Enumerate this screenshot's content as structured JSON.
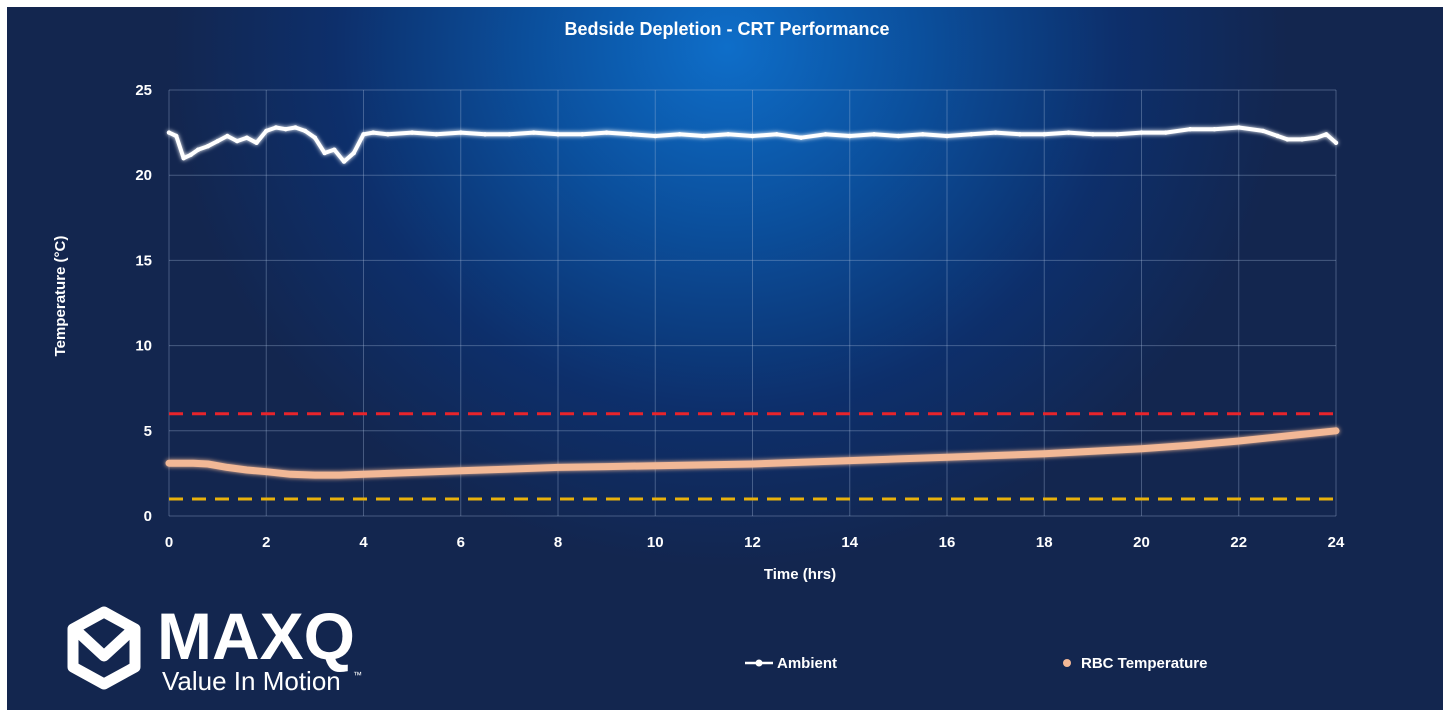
{
  "chart_data": {
    "type": "line",
    "title": "Bedside Depletion - CRT Performance",
    "xlabel": "Time (hrs)",
    "ylabel": "Temperature (°C)",
    "xlim": [
      0,
      24
    ],
    "ylim": [
      0,
      25
    ],
    "x_ticks": [
      0,
      2,
      4,
      6,
      8,
      10,
      12,
      14,
      16,
      18,
      20,
      22,
      24
    ],
    "y_ticks": [
      0,
      5,
      10,
      15,
      20,
      25
    ],
    "x_tick_labels": [
      "0",
      "2",
      "4",
      "6",
      "8",
      "10",
      "12",
      "14",
      "16",
      "18",
      "20",
      "22",
      "24"
    ],
    "y_tick_labels": [
      "0",
      "5",
      "10",
      "15",
      "20",
      "25"
    ],
    "grid": true,
    "legend_position": "bottom",
    "reference_lines": [
      {
        "y": 6,
        "color": "#e8242b",
        "style": "dashed"
      },
      {
        "y": 1,
        "color": "#e8b10c",
        "style": "dashed"
      }
    ],
    "series": [
      {
        "name": "Ambient",
        "color": "#ffffff",
        "x": [
          0,
          0.15,
          0.3,
          0.45,
          0.6,
          0.8,
          1.0,
          1.2,
          1.4,
          1.6,
          1.8,
          2.0,
          2.2,
          2.4,
          2.6,
          2.8,
          3.0,
          3.2,
          3.4,
          3.6,
          3.8,
          4.0,
          4.2,
          4.5,
          5.0,
          5.5,
          6.0,
          6.5,
          7.0,
          7.5,
          8.0,
          8.5,
          9.0,
          9.5,
          10.0,
          10.5,
          11.0,
          11.5,
          12.0,
          12.5,
          13.0,
          13.5,
          14.0,
          14.5,
          15.0,
          15.5,
          16.0,
          16.5,
          17.0,
          17.5,
          18.0,
          18.5,
          19.0,
          19.5,
          20.0,
          20.5,
          21.0,
          21.5,
          22.0,
          22.5,
          22.8,
          23.0,
          23.3,
          23.6,
          23.8,
          24.0
        ],
        "values": [
          22.5,
          22.3,
          21.0,
          21.2,
          21.5,
          21.7,
          22.0,
          22.3,
          22.0,
          22.2,
          21.9,
          22.6,
          22.8,
          22.7,
          22.8,
          22.6,
          22.2,
          21.3,
          21.5,
          20.8,
          21.3,
          22.4,
          22.5,
          22.4,
          22.5,
          22.4,
          22.5,
          22.4,
          22.4,
          22.5,
          22.4,
          22.4,
          22.5,
          22.4,
          22.3,
          22.4,
          22.3,
          22.4,
          22.3,
          22.4,
          22.2,
          22.4,
          22.3,
          22.4,
          22.3,
          22.4,
          22.3,
          22.4,
          22.5,
          22.4,
          22.4,
          22.5,
          22.4,
          22.4,
          22.5,
          22.5,
          22.7,
          22.7,
          22.8,
          22.6,
          22.3,
          22.1,
          22.1,
          22.2,
          22.4,
          21.9
        ]
      },
      {
        "name": "RBC Temperature",
        "color": "#f2b896",
        "x": [
          0,
          0.5,
          0.8,
          1.2,
          1.6,
          2.0,
          2.5,
          3.0,
          3.5,
          4.0,
          5.0,
          6.0,
          7.0,
          8.0,
          9.0,
          10.0,
          11.0,
          12.0,
          13.0,
          14.0,
          15.0,
          16.0,
          17.0,
          18.0,
          19.0,
          20.0,
          21.0,
          22.0,
          23.0,
          24.0
        ],
        "values": [
          3.1,
          3.1,
          3.05,
          2.85,
          2.7,
          2.6,
          2.45,
          2.4,
          2.4,
          2.45,
          2.55,
          2.65,
          2.75,
          2.85,
          2.9,
          2.95,
          3.0,
          3.05,
          3.15,
          3.25,
          3.35,
          3.45,
          3.55,
          3.65,
          3.8,
          3.95,
          4.15,
          4.4,
          4.7,
          5.0
        ]
      }
    ]
  },
  "legend": {
    "items": [
      {
        "label": "Ambient"
      },
      {
        "label": "RBC Temperature"
      }
    ]
  },
  "brand": {
    "name": "MAXQ",
    "tagline": "Value In Motion",
    "trademark": "™"
  }
}
